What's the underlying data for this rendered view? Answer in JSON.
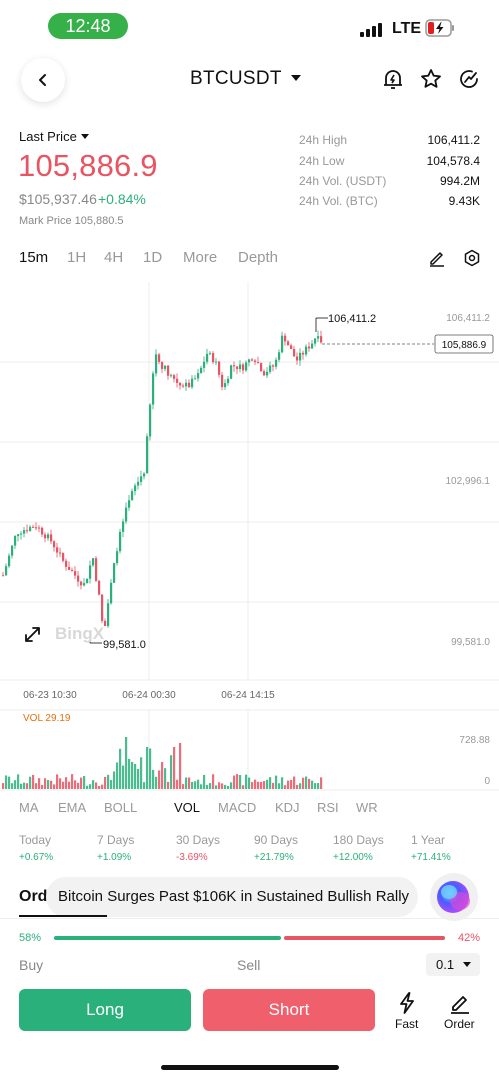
{
  "status_bar": {
    "time": "12:48",
    "network": "LTE"
  },
  "header": {
    "pair": "BTCUSDT"
  },
  "price": {
    "last_price_label": "Last Price",
    "last_price": "105,886.9",
    "usd_price": "$105,937.46",
    "change": "+0.84%",
    "mark_price": "Mark Price 105,880.5"
  },
  "stats": [
    {
      "label": "24h High",
      "value": "106,411.2"
    },
    {
      "label": "24h Low",
      "value": "104,578.4"
    },
    {
      "label": "24h Vol. (USDT)",
      "value": "994.2M"
    },
    {
      "label": "24h Vol. (BTC)",
      "value": "9.43K"
    }
  ],
  "timeframes": [
    "15m",
    "1H",
    "4H",
    "1D",
    "More",
    "Depth"
  ],
  "active_timeframe": "15m",
  "chart_data": {
    "type": "candlestick",
    "y_axis_labels": [
      "106,411.2",
      "102,996.1",
      "99,581.0"
    ],
    "y_range": [
      99581.0,
      106411.2
    ],
    "high_label": "106,411.2",
    "low_label": "99,581.0",
    "current_price_label": "105,886.9",
    "x_labels": [
      "06-23 10:30",
      "06-24 00:30",
      "06-24 14:15"
    ],
    "watermark": "BingX",
    "volume_label": "VOL 29.19",
    "volume_axis": [
      "728.88",
      "0"
    ]
  },
  "indicators": [
    "MA",
    "EMA",
    "BOLL",
    "VOL",
    "MACD",
    "KDJ",
    "RSI",
    "WR"
  ],
  "active_indicator": "VOL",
  "performance": [
    {
      "label": "Today",
      "value": "+0.67%",
      "up": true
    },
    {
      "label": "7 Days",
      "value": "+1.09%",
      "up": true
    },
    {
      "label": "30 Days",
      "value": "-3.69%",
      "up": false
    },
    {
      "label": "90 Days",
      "value": "+21.79%",
      "up": true
    },
    {
      "label": "180 Days",
      "value": "+12.00%",
      "up": true
    },
    {
      "label": "1 Year",
      "value": "+71.41%",
      "up": true
    }
  ],
  "news": {
    "tab_fragment": "Ord",
    "headline": "Bitcoin Surges Past $106K in Sustained Bullish Rally"
  },
  "ratio": {
    "buy_pct": "58%",
    "sell_pct": "42%",
    "buy_fraction": 0.58
  },
  "order": {
    "buy_label": "Buy",
    "sell_label": "Sell",
    "quantity": "0.1",
    "long_label": "Long",
    "short_label": "Short",
    "fast_label": "Fast",
    "order_label": "Order"
  },
  "colors": {
    "up": "#2ab07b",
    "down": "#e95463",
    "status_pill": "#36b14a"
  }
}
